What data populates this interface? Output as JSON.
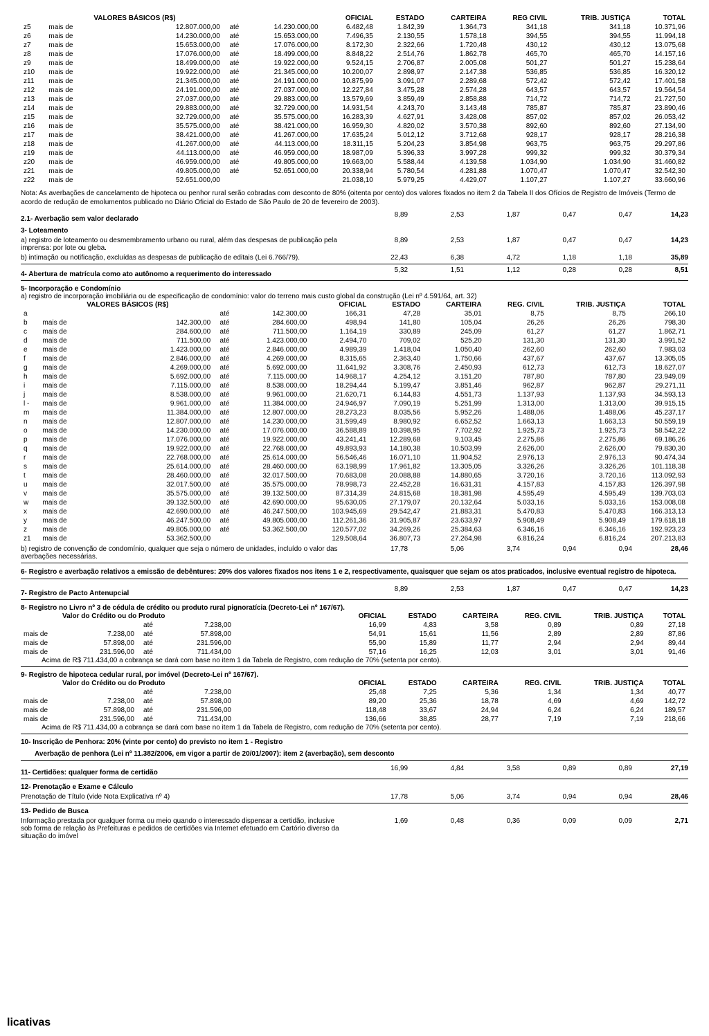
{
  "table1": {
    "headers": [
      "",
      "",
      "VALORES BÁSICOS (R$)",
      "",
      "",
      "OFICIAL",
      "ESTADO",
      "CARTEIRA",
      "REG CIVIL",
      "TRIB. JUSTIÇA",
      "TOTAL"
    ],
    "rows": [
      [
        "z5",
        "mais de",
        "12.807.000,00",
        "até",
        "14.230.000,00",
        "6.482,48",
        "1.842,39",
        "1.364,73",
        "341,18",
        "341,18",
        "10.371,96"
      ],
      [
        "z6",
        "mais de",
        "14.230.000,00",
        "até",
        "15.653.000,00",
        "7.496,35",
        "2.130,55",
        "1.578,18",
        "394,55",
        "394,55",
        "11.994,18"
      ],
      [
        "z7",
        "mais de",
        "15.653.000,00",
        "até",
        "17.076.000,00",
        "8.172,30",
        "2.322,66",
        "1.720,48",
        "430,12",
        "430,12",
        "13.075,68"
      ],
      [
        "z8",
        "mais de",
        "17.076.000,00",
        "até",
        "18.499.000,00",
        "8.848,22",
        "2.514,76",
        "1.862,78",
        "465,70",
        "465,70",
        "14.157,16"
      ],
      [
        "z9",
        "mais de",
        "18.499.000,00",
        "até",
        "19.922.000,00",
        "9.524,15",
        "2.706,87",
        "2.005,08",
        "501,27",
        "501,27",
        "15.238,64"
      ],
      [
        "z10",
        "mais de",
        "19.922.000,00",
        "até",
        "21.345.000,00",
        "10.200,07",
        "2.898,97",
        "2.147,38",
        "536,85",
        "536,85",
        "16.320,12"
      ],
      [
        "z11",
        "mais de",
        "21.345.000,00",
        "até",
        "24.191.000,00",
        "10.875,99",
        "3.091,07",
        "2.289,68",
        "572,42",
        "572,42",
        "17.401,58"
      ],
      [
        "z12",
        "mais de",
        "24.191.000,00",
        "até",
        "27.037.000,00",
        "12.227,84",
        "3.475,28",
        "2.574,28",
        "643,57",
        "643,57",
        "19.564,54"
      ],
      [
        "z13",
        "mais de",
        "27.037.000,00",
        "até",
        "29.883.000,00",
        "13.579,69",
        "3.859,49",
        "2.858,88",
        "714,72",
        "714,72",
        "21.727,50"
      ],
      [
        "z14",
        "mais de",
        "29.883.000,00",
        "até",
        "32.729.000,00",
        "14.931,54",
        "4.243,70",
        "3.143,48",
        "785,87",
        "785,87",
        "23.890,46"
      ],
      [
        "z15",
        "mais de",
        "32.729.000,00",
        "até",
        "35.575.000,00",
        "16.283,39",
        "4.627,91",
        "3.428,08",
        "857,02",
        "857,02",
        "26.053,42"
      ],
      [
        "z16",
        "mais de",
        "35.575.000,00",
        "até",
        "38.421.000,00",
        "16.959,30",
        "4.820,02",
        "3.570,38",
        "892,60",
        "892,60",
        "27.134,90"
      ],
      [
        "z17",
        "mais de",
        "38.421.000,00",
        "até",
        "41.267.000,00",
        "17.635,24",
        "5.012,12",
        "3.712,68",
        "928,17",
        "928,17",
        "28.216,38"
      ],
      [
        "z18",
        "mais de",
        "41.267.000,00",
        "até",
        "44.113.000,00",
        "18.311,15",
        "5.204,23",
        "3.854,98",
        "963,75",
        "963,75",
        "29.297,86"
      ],
      [
        "z19",
        "mais de",
        "44.113.000,00",
        "até",
        "46.959.000,00",
        "18.987,09",
        "5.396,33",
        "3.997,28",
        "999,32",
        "999,32",
        "30.379,34"
      ],
      [
        "z20",
        "mais de",
        "46.959.000,00",
        "até",
        "49.805.000,00",
        "19.663,00",
        "5.588,44",
        "4.139,58",
        "1.034,90",
        "1.034,90",
        "31.460,82"
      ],
      [
        "z21",
        "mais de",
        "49.805.000,00",
        "até",
        "52.651.000,00",
        "20.338,94",
        "5.780,54",
        "4.281,88",
        "1.070,47",
        "1.070,47",
        "32.542,30"
      ],
      [
        "z22",
        "mais de",
        "52.651.000,00",
        "",
        "",
        "21.038,10",
        "5.979,25",
        "4.429,07",
        "1.107,27",
        "1.107,27",
        "33.660,96"
      ]
    ]
  },
  "note1": "Nota: As averbações de cancelamento de hipoteca ou penhor rural serão cobradas com desconto de 80% (oitenta por cento) dos valores fixados no item 2 da Tabela II dos Ofícios de Registro de Imóveis (Termo de acordo de redução de emolumentos publicado no Diário Oficial do Estado de São Paulo de 20 de fevereiro de 2003).",
  "sec21": {
    "title": "2.1- Averbação sem valor declarado",
    "vals": [
      "8,89",
      "2,53",
      "1,87",
      "0,47",
      "0,47",
      "14,23"
    ]
  },
  "sec3": {
    "title": "3- Loteamento",
    "a": {
      "text": "a) registro de loteamento ou desmembramento urbano ou rural, além das despesas de publicação pela imprensa: por lote ou gleba.",
      "vals": [
        "8,89",
        "2,53",
        "1,87",
        "0,47",
        "0,47",
        "14,23"
      ]
    },
    "b": {
      "text": "b) intimação ou notificação, excluídas as despesas de publicação de editais (Lei 6.766/79).",
      "vals": [
        "22,43",
        "6,38",
        "4,72",
        "1,18",
        "1,18",
        "35,89"
      ]
    }
  },
  "sec4": {
    "title": "4- Abertura de matrícula como ato autônomo a requerimento do interessado",
    "vals": [
      "5,32",
      "1,51",
      "1,12",
      "0,28",
      "0,28",
      "8,51"
    ]
  },
  "sec5": {
    "title": "5- Incorporação e Condomínio",
    "sub": "a) registro de incorporação imobiliária ou de especificação de condomínio: valor do terreno mais custo global da construção (Lei nº 4.591/64, art. 32)"
  },
  "table2": {
    "headers": [
      "",
      "",
      "VALORES BÁSICOS (R$)",
      "",
      "",
      "OFICIAL",
      "ESTADO",
      "CARTEIRA",
      "REG. CIVIL",
      "TRIB. JUSTIÇA",
      "TOTAL"
    ],
    "rows": [
      [
        "a",
        "",
        "",
        "até",
        "142.300,00",
        "166,31",
        "47,28",
        "35,01",
        "8,75",
        "8,75",
        "266,10"
      ],
      [
        "b",
        "mais de",
        "142.300,00",
        "até",
        "284.600,00",
        "498,94",
        "141,80",
        "105,04",
        "26,26",
        "26,26",
        "798,30"
      ],
      [
        "c",
        "mais de",
        "284.600,00",
        "até",
        "711.500,00",
        "1.164,19",
        "330,89",
        "245,09",
        "61,27",
        "61,27",
        "1.862,71"
      ],
      [
        "d",
        "mais de",
        "711.500,00",
        "até",
        "1.423.000,00",
        "2.494,70",
        "709,02",
        "525,20",
        "131,30",
        "131,30",
        "3.991,52"
      ],
      [
        "e",
        "mais de",
        "1.423.000,00",
        "até",
        "2.846.000,00",
        "4.989,39",
        "1.418,04",
        "1.050,40",
        "262,60",
        "262,60",
        "7.983,03"
      ],
      [
        "f",
        "mais de",
        "2.846.000,00",
        "até",
        "4.269.000,00",
        "8.315,65",
        "2.363,40",
        "1.750,66",
        "437,67",
        "437,67",
        "13.305,05"
      ],
      [
        "g",
        "mais de",
        "4.269.000,00",
        "até",
        "5.692.000,00",
        "11.641,92",
        "3.308,76",
        "2.450,93",
        "612,73",
        "612,73",
        "18.627,07"
      ],
      [
        "h",
        "mais de",
        "5.692.000,00",
        "até",
        "7.115.000,00",
        "14.968,17",
        "4.254,12",
        "3.151,20",
        "787,80",
        "787,80",
        "23.949,09"
      ],
      [
        "i",
        "mais de",
        "7.115.000,00",
        "até",
        "8.538.000,00",
        "18.294,44",
        "5.199,47",
        "3.851,46",
        "962,87",
        "962,87",
        "29.271,11"
      ],
      [
        "j",
        "mais de",
        "8.538.000,00",
        "até",
        "9.961.000,00",
        "21.620,71",
        "6.144,83",
        "4.551,73",
        "1.137,93",
        "1.137,93",
        "34.593,13"
      ],
      [
        "l -",
        "mais de",
        "9.961.000,00",
        "até",
        "11.384.000,00",
        "24.946,97",
        "7.090,19",
        "5.251,99",
        "1.313,00",
        "1.313,00",
        "39.915,15"
      ],
      [
        "m",
        "mais de",
        "11.384.000,00",
        "até",
        "12.807.000,00",
        "28.273,23",
        "8.035,56",
        "5.952,26",
        "1.488,06",
        "1.488,06",
        "45.237,17"
      ],
      [
        "n",
        "mais de",
        "12.807.000,00",
        "até",
        "14.230.000,00",
        "31.599,49",
        "8.980,92",
        "6.652,52",
        "1.663,13",
        "1.663,13",
        "50.559,19"
      ],
      [
        "o",
        "mais de",
        "14.230.000,00",
        "até",
        "17.076.000,00",
        "36.588,89",
        "10.398,95",
        "7.702,92",
        "1.925,73",
        "1.925,73",
        "58.542,22"
      ],
      [
        "p",
        "mais de",
        "17.076.000,00",
        "até",
        "19.922.000,00",
        "43.241,41",
        "12.289,68",
        "9.103,45",
        "2.275,86",
        "2.275,86",
        "69.186,26"
      ],
      [
        "q",
        "mais de",
        "19.922.000,00",
        "até",
        "22.768.000,00",
        "49.893,93",
        "14.180,38",
        "10.503,99",
        "2.626,00",
        "2.626,00",
        "79.830,30"
      ],
      [
        "r",
        "mais de",
        "22.768.000,00",
        "até",
        "25.614.000,00",
        "56.546,46",
        "16.071,10",
        "11.904,52",
        "2.976,13",
        "2.976,13",
        "90.474,34"
      ],
      [
        "s",
        "mais de",
        "25.614.000,00",
        "até",
        "28.460.000,00",
        "63.198,99",
        "17.961,82",
        "13.305,05",
        "3.326,26",
        "3.326,26",
        "101.118,38"
      ],
      [
        "t",
        "mais de",
        "28.460.000,00",
        "até",
        "32.017.500,00",
        "70.683,08",
        "20.088,88",
        "14.880,65",
        "3.720,16",
        "3.720,16",
        "113.092,93"
      ],
      [
        "u",
        "mais de",
        "32.017.500,00",
        "até",
        "35.575.000,00",
        "78.998,73",
        "22.452,28",
        "16.631,31",
        "4.157,83",
        "4.157,83",
        "126.397,98"
      ],
      [
        "v",
        "mais de",
        "35.575.000,00",
        "até",
        "39.132.500,00",
        "87.314,39",
        "24.815,68",
        "18.381,98",
        "4.595,49",
        "4.595,49",
        "139.703,03"
      ],
      [
        "w",
        "mais de",
        "39.132.500,00",
        "até",
        "42.690.000,00",
        "95.630,05",
        "27.179,07",
        "20.132,64",
        "5.033,16",
        "5.033,16",
        "153.008,08"
      ],
      [
        "x",
        "mais de",
        "42.690.000,00",
        "até",
        "46.247.500,00",
        "103.945,69",
        "29.542,47",
        "21.883,31",
        "5.470,83",
        "5.470,83",
        "166.313,13"
      ],
      [
        "y",
        "mais de",
        "46.247.500,00",
        "até",
        "49.805.000,00",
        "112.261,36",
        "31.905,87",
        "23.633,97",
        "5.908,49",
        "5.908,49",
        "179.618,18"
      ],
      [
        "z",
        "mais de",
        "49.805.000,00",
        "até",
        "53.362.500,00",
        "120.577,02",
        "34.269,26",
        "25.384,63",
        "6.346,16",
        "6.346,16",
        "192.923,23"
      ],
      [
        "z1",
        "mais de",
        "53.362.500,00",
        "",
        "",
        "129.508,64",
        "36.807,73",
        "27.264,98",
        "6.816,24",
        "6.816,24",
        "207.213,83"
      ]
    ]
  },
  "sec5b": {
    "text": "b) registro de convenção de condomínio, qualquer que seja o número de unidades, incluído o valor das averbações necessárias.",
    "vals": [
      "17,78",
      "5,06",
      "3,74",
      "0,94",
      "0,94",
      "28,46"
    ]
  },
  "sec6": "6- Registro e averbação relativos a emissão de debêntures: 20% dos valores fixados nos itens 1 e 2, respectivamente, quaisquer que sejam os atos praticados, inclusive eventual registro de hipoteca.",
  "sec7": {
    "title": "7- Registro de Pacto Antenupcial",
    "vals": [
      "8,89",
      "2,53",
      "1,87",
      "0,47",
      "0,47",
      "14,23"
    ]
  },
  "sec8": {
    "title": "8- Registro no Livro nº 3 de cédula de crédito ou produto rural pignoratícia (Decreto-Lei nº 167/67).",
    "sub": "Valor do Crédito ou do Produto",
    "headers": [
      "",
      "",
      "",
      "",
      "OFICIAL",
      "ESTADO",
      "CARTEIRA",
      "REG. CIVIL",
      "TRIB. JUSTIÇA",
      "TOTAL"
    ],
    "rows": [
      [
        "",
        "",
        "até",
        "7.238,00",
        "16,99",
        "4,83",
        "3,58",
        "0,89",
        "0,89",
        "27,18"
      ],
      [
        "mais de",
        "7.238,00",
        "até",
        "57.898,00",
        "54,91",
        "15,61",
        "11,56",
        "2,89",
        "2,89",
        "87,86"
      ],
      [
        "mais de",
        "57.898,00",
        "até",
        "231.596,00",
        "55,90",
        "15,89",
        "11,77",
        "2,94",
        "2,94",
        "89,44"
      ],
      [
        "mais de",
        "231.596,00",
        "até",
        "711.434,00",
        "57,16",
        "16,25",
        "12,03",
        "3,01",
        "3,01",
        "91,46"
      ]
    ],
    "foot": "Acima de R$ 711.434,00 a cobrança se dará com base no item 1 da Tabela de Registro, com redução de 70% (setenta por cento)."
  },
  "sec9": {
    "title": "9- Registro de hipoteca cedular rural, por imóvel (Decreto-Lei nº 167/67).",
    "sub": "Valor do Crédito ou do Produto",
    "headers": [
      "",
      "",
      "",
      "",
      "OFICIAL",
      "ESTADO",
      "CARTEIRA",
      "REG. CIVIL",
      "TRIB. JUSTIÇA",
      "TOTAL"
    ],
    "rows": [
      [
        "",
        "",
        "até",
        "7.238,00",
        "25,48",
        "7,25",
        "5,36",
        "1,34",
        "1,34",
        "40,77"
      ],
      [
        "mais de",
        "7.238,00",
        "até",
        "57.898,00",
        "89,20",
        "25,36",
        "18,78",
        "4,69",
        "4,69",
        "142,72"
      ],
      [
        "mais de",
        "57.898,00",
        "até",
        "231.596,00",
        "118,48",
        "33,67",
        "24,94",
        "6,24",
        "6,24",
        "189,57"
      ],
      [
        "mais de",
        "231.596,00",
        "até",
        "711.434,00",
        "136,66",
        "38,85",
        "28,77",
        "7,19",
        "7,19",
        "218,66"
      ]
    ],
    "foot": "Acima de R$ 711.434,00 a cobrança se dará com base no item 1 da Tabela de Registro, com redução de 70% (setenta por cento)."
  },
  "sec10": {
    "a": "10- Inscrição de Penhora: 20% (vinte por cento) do previsto no item 1 - Registro",
    "b": "Averbação de penhora (Lei nº 11.382/2006, em vigor a partir de 20/01/2007): item 2 (averbação), sem desconto"
  },
  "sec11": {
    "title": "11- Certidões: qualquer forma de certidão",
    "vals": [
      "16,99",
      "4,84",
      "3,58",
      "0,89",
      "0,89",
      "27,19"
    ]
  },
  "sec12": {
    "title": "12- Prenotação e Exame e Cálculo",
    "sub": "Prenotação de Título (vide Nota Explicativa nº 4)",
    "vals": [
      "17,78",
      "5,06",
      "3,74",
      "0,94",
      "0,94",
      "28,46"
    ]
  },
  "sec13": {
    "title": "13- Pedido de Busca",
    "text": "Informação prestada por qualquer forma ou meio quando o interessado dispensar a certidão, inclusive sob forma de relação às Prefeituras e pedidos de certidões via Internet efetuado em Cartório diverso da situação do imóvel",
    "vals": [
      "1,69",
      "0,48",
      "0,36",
      "0,09",
      "0,09",
      "2,71"
    ]
  },
  "footer": "licativas"
}
